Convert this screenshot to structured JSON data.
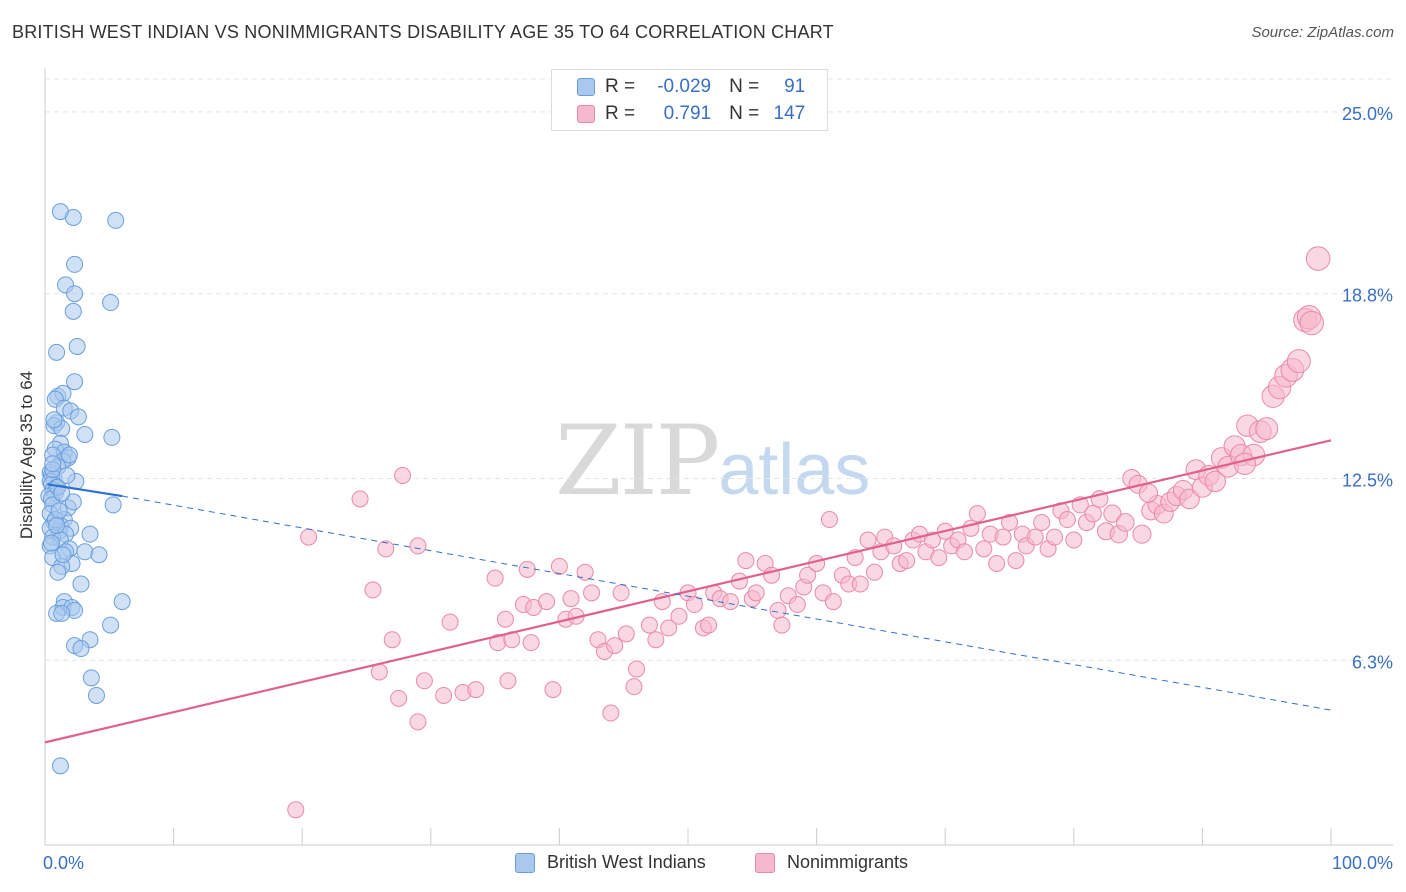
{
  "title": "BRITISH WEST INDIAN VS NONIMMIGRANTS DISABILITY AGE 35 TO 64 CORRELATION CHART",
  "source": "Source: ZipAtlas.com",
  "watermark": {
    "zip": "ZIP",
    "atlas": "atlas"
  },
  "legend": {
    "r_label": "R =",
    "n_label": "N =",
    "series": [
      {
        "name": "British West Indians",
        "r": "-0.029",
        "n": "91"
      },
      {
        "name": "Nonimmigrants",
        "r": "0.791",
        "n": "147"
      }
    ]
  },
  "colors": {
    "blue_fill": "#aac8ee",
    "blue_stroke": "#6a9fdc",
    "blue_line": "#2f6fcf",
    "pink_fill": "#f6b8cc",
    "pink_stroke": "#e98aa8",
    "pink_line": "#e0608e",
    "tick_label": "#3a6fc4",
    "grid": "#e4e4e4"
  },
  "chart_data": {
    "type": "scatter",
    "title": "BRITISH WEST INDIAN VS NONIMMIGRANTS DISABILITY AGE 35 TO 64 CORRELATION CHART",
    "xlabel": "",
    "ylabel": "Disability Age 35 to 64",
    "xlim": [
      0,
      100
    ],
    "ylim": [
      0,
      26.6
    ],
    "x_tick_labels": [
      "0.0%",
      "100.0%"
    ],
    "y_ticks": [
      6.3,
      12.5,
      18.8,
      25.0
    ],
    "y_tick_labels": [
      "6.3%",
      "12.5%",
      "18.8%",
      "25.0%"
    ],
    "series": [
      {
        "name": "British West Indians",
        "r": -0.029,
        "n": 91,
        "trend_solid": [
          [
            0.2,
            12.3
          ],
          [
            6.0,
            11.9
          ]
        ],
        "trend_dashed": [
          [
            6.0,
            11.9
          ],
          [
            100,
            4.6
          ]
        ],
        "points": [
          [
            1.2,
            21.6
          ],
          [
            2.2,
            21.4
          ],
          [
            5.5,
            21.3
          ],
          [
            2.3,
            19.8
          ],
          [
            1.6,
            19.1
          ],
          [
            2.3,
            18.8
          ],
          [
            5.1,
            18.5
          ],
          [
            2.2,
            18.2
          ],
          [
            2.5,
            17.0
          ],
          [
            0.9,
            16.8
          ],
          [
            2.3,
            15.8
          ],
          [
            1.0,
            15.3
          ],
          [
            1.4,
            15.4
          ],
          [
            0.8,
            15.2
          ],
          [
            1.5,
            14.9
          ],
          [
            2.0,
            14.8
          ],
          [
            2.6,
            14.6
          ],
          [
            0.9,
            14.4
          ],
          [
            0.7,
            14.3
          ],
          [
            1.3,
            14.2
          ],
          [
            3.1,
            14.0
          ],
          [
            5.2,
            13.9
          ],
          [
            1.2,
            13.7
          ],
          [
            0.8,
            13.5
          ],
          [
            1.5,
            13.4
          ],
          [
            0.6,
            13.3
          ],
          [
            1.8,
            13.2
          ],
          [
            1.4,
            13.1
          ],
          [
            1.0,
            12.9
          ],
          [
            0.4,
            12.7
          ],
          [
            0.5,
            12.6
          ],
          [
            0.7,
            12.5
          ],
          [
            0.4,
            12.4
          ],
          [
            2.4,
            12.4
          ],
          [
            0.5,
            12.3
          ],
          [
            0.9,
            12.2
          ],
          [
            0.6,
            12.1
          ],
          [
            0.8,
            12.0
          ],
          [
            0.3,
            11.9
          ],
          [
            0.5,
            11.8
          ],
          [
            0.6,
            11.6
          ],
          [
            5.3,
            11.6
          ],
          [
            1.8,
            11.5
          ],
          [
            0.4,
            11.3
          ],
          [
            1.5,
            11.1
          ],
          [
            0.7,
            11.0
          ],
          [
            1.2,
            10.9
          ],
          [
            0.4,
            10.8
          ],
          [
            2.0,
            10.8
          ],
          [
            1.1,
            10.7
          ],
          [
            1.6,
            10.6
          ],
          [
            3.5,
            10.6
          ],
          [
            0.6,
            10.5
          ],
          [
            1.2,
            10.4
          ],
          [
            0.4,
            10.2
          ],
          [
            1.9,
            10.1
          ],
          [
            1.6,
            10.0
          ],
          [
            3.1,
            10.0
          ],
          [
            4.2,
            9.9
          ],
          [
            0.6,
            9.8
          ],
          [
            2.1,
            9.6
          ],
          [
            1.3,
            9.5
          ],
          [
            1.0,
            9.3
          ],
          [
            6.0,
            8.3
          ],
          [
            1.5,
            8.3
          ],
          [
            1.4,
            8.1
          ],
          [
            2.1,
            8.1
          ],
          [
            2.3,
            8.0
          ],
          [
            0.9,
            7.9
          ],
          [
            1.3,
            7.9
          ],
          [
            5.1,
            7.5
          ],
          [
            3.5,
            7.0
          ],
          [
            2.3,
            6.8
          ],
          [
            2.8,
            6.7
          ],
          [
            3.6,
            5.7
          ],
          [
            4.0,
            5.1
          ],
          [
            1.2,
            2.7
          ],
          [
            0.6,
            12.8
          ],
          [
            1.0,
            12.2
          ],
          [
            0.8,
            11.1
          ],
          [
            1.9,
            13.3
          ],
          [
            0.7,
            14.5
          ],
          [
            1.1,
            11.4
          ],
          [
            0.5,
            10.3
          ],
          [
            2.8,
            8.9
          ],
          [
            1.7,
            12.6
          ],
          [
            0.9,
            10.9
          ],
          [
            1.4,
            9.9
          ],
          [
            0.6,
            13.0
          ],
          [
            2.2,
            11.7
          ],
          [
            1.3,
            12.0
          ]
        ]
      },
      {
        "name": "Nonimmigrants",
        "r": 0.791,
        "n": 147,
        "trend": [
          [
            0,
            3.5
          ],
          [
            100,
            13.8
          ]
        ],
        "points": [
          [
            19.5,
            1.2
          ],
          [
            20.5,
            10.5
          ],
          [
            24.5,
            11.8
          ],
          [
            25.5,
            8.7
          ],
          [
            26.0,
            5.9
          ],
          [
            26.5,
            10.1
          ],
          [
            27.0,
            7.0
          ],
          [
            27.8,
            12.6
          ],
          [
            27.5,
            5.0
          ],
          [
            29.0,
            4.2
          ],
          [
            29.0,
            10.2
          ],
          [
            29.5,
            5.6
          ],
          [
            31.0,
            5.1
          ],
          [
            31.5,
            7.6
          ],
          [
            32.5,
            5.2
          ],
          [
            33.5,
            5.3
          ],
          [
            35.0,
            9.1
          ],
          [
            35.2,
            6.9
          ],
          [
            35.8,
            7.7
          ],
          [
            36.0,
            5.6
          ],
          [
            36.3,
            7.0
          ],
          [
            37.2,
            8.2
          ],
          [
            37.5,
            9.4
          ],
          [
            37.8,
            6.9
          ],
          [
            38.0,
            8.1
          ],
          [
            39.0,
            8.3
          ],
          [
            39.5,
            5.3
          ],
          [
            40.0,
            9.5
          ],
          [
            40.5,
            7.7
          ],
          [
            40.9,
            8.4
          ],
          [
            41.3,
            7.8
          ],
          [
            42.0,
            9.3
          ],
          [
            42.5,
            8.6
          ],
          [
            43.0,
            7.0
          ],
          [
            43.5,
            6.6
          ],
          [
            44.0,
            4.5
          ],
          [
            44.3,
            6.8
          ],
          [
            44.8,
            8.6
          ],
          [
            45.2,
            7.2
          ],
          [
            45.8,
            5.4
          ],
          [
            46.0,
            6.0
          ],
          [
            47.0,
            7.5
          ],
          [
            47.5,
            7.0
          ],
          [
            48.0,
            8.3
          ],
          [
            48.5,
            7.4
          ],
          [
            49.3,
            7.8
          ],
          [
            50.0,
            8.6
          ],
          [
            50.5,
            8.2
          ],
          [
            51.2,
            7.4
          ],
          [
            51.6,
            7.5
          ],
          [
            52.0,
            8.6
          ],
          [
            52.5,
            8.4
          ],
          [
            53.3,
            8.3
          ],
          [
            54.0,
            9.0
          ],
          [
            54.5,
            9.7
          ],
          [
            55.0,
            8.4
          ],
          [
            55.3,
            8.6
          ],
          [
            56.0,
            9.6
          ],
          [
            56.5,
            9.2
          ],
          [
            57.0,
            8.0
          ],
          [
            57.3,
            7.5
          ],
          [
            57.8,
            8.5
          ],
          [
            58.5,
            8.2
          ],
          [
            59.0,
            8.8
          ],
          [
            59.3,
            9.2
          ],
          [
            60.0,
            9.6
          ],
          [
            60.5,
            8.6
          ],
          [
            61.0,
            11.1
          ],
          [
            61.3,
            8.3
          ],
          [
            62.0,
            9.2
          ],
          [
            62.5,
            8.9
          ],
          [
            63.0,
            9.8
          ],
          [
            63.4,
            8.9
          ],
          [
            64.0,
            10.4
          ],
          [
            64.5,
            9.3
          ],
          [
            65.0,
            10.0
          ],
          [
            65.3,
            10.5
          ],
          [
            66.0,
            10.2
          ],
          [
            66.5,
            9.6
          ],
          [
            67.0,
            9.7
          ],
          [
            67.5,
            10.4
          ],
          [
            68.0,
            10.6
          ],
          [
            68.5,
            10.0
          ],
          [
            69.0,
            10.4
          ],
          [
            69.5,
            9.8
          ],
          [
            70.0,
            10.7
          ],
          [
            70.5,
            10.2
          ],
          [
            71.0,
            10.4
          ],
          [
            71.5,
            10.0
          ],
          [
            72.0,
            10.8
          ],
          [
            72.5,
            11.3
          ],
          [
            73.0,
            10.1
          ],
          [
            73.5,
            10.6
          ],
          [
            74.0,
            9.6
          ],
          [
            74.5,
            10.5
          ],
          [
            75.0,
            11.0
          ],
          [
            75.5,
            9.7
          ],
          [
            76.0,
            10.6
          ],
          [
            76.3,
            10.2
          ],
          [
            77.0,
            10.5
          ],
          [
            77.5,
            11.0
          ],
          [
            78.0,
            10.1
          ],
          [
            78.5,
            10.5
          ],
          [
            79.0,
            11.4
          ],
          [
            79.5,
            11.1
          ],
          [
            80.0,
            10.4
          ],
          [
            80.5,
            11.6
          ],
          [
            81.0,
            11.0
          ],
          [
            81.5,
            11.3
          ],
          [
            82.0,
            11.8
          ],
          [
            82.5,
            10.7
          ],
          [
            83.0,
            11.3
          ],
          [
            83.5,
            10.6
          ],
          [
            84.0,
            11.0
          ],
          [
            84.5,
            12.5
          ],
          [
            85.0,
            12.3
          ],
          [
            85.3,
            10.6
          ],
          [
            86.0,
            11.4
          ],
          [
            86.5,
            11.6
          ],
          [
            87.0,
            11.3
          ],
          [
            87.5,
            11.7
          ],
          [
            88.0,
            11.9
          ],
          [
            88.5,
            12.1
          ],
          [
            89.0,
            11.8
          ],
          [
            89.5,
            12.8
          ],
          [
            90.0,
            12.2
          ],
          [
            90.5,
            12.6
          ],
          [
            91.0,
            12.4
          ],
          [
            91.5,
            13.2
          ],
          [
            92.0,
            12.9
          ],
          [
            92.5,
            13.6
          ],
          [
            93.0,
            13.3
          ],
          [
            93.5,
            14.3
          ],
          [
            94.0,
            13.3
          ],
          [
            94.5,
            14.1
          ],
          [
            95.0,
            14.2
          ],
          [
            95.5,
            15.3
          ],
          [
            96.0,
            15.6
          ],
          [
            96.5,
            16.0
          ],
          [
            97.0,
            16.2
          ],
          [
            97.5,
            16.5
          ],
          [
            98.0,
            17.9
          ],
          [
            98.3,
            18.0
          ],
          [
            99.0,
            20.0
          ],
          [
            98.5,
            17.8
          ],
          [
            93.3,
            13.0
          ],
          [
            85.8,
            12.0
          ]
        ]
      }
    ]
  }
}
